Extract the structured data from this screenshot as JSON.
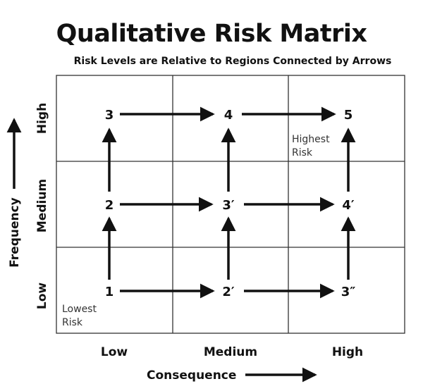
{
  "title": "Qualitative Risk Matrix",
  "subtitle": "Risk Levels are Relative to Regions Connected by Arrows",
  "x_axis": {
    "label": "Consequence",
    "categories": [
      "Low",
      "Medium",
      "High"
    ]
  },
  "y_axis": {
    "label": "Frequency",
    "categories": [
      "Low",
      "Medium",
      "High"
    ]
  },
  "nodes": {
    "low_low": "1",
    "low_medium": "2′",
    "low_high": "3″",
    "medium_low": "2",
    "medium_medium": "3′",
    "medium_high": "4′",
    "high_low": "3",
    "high_medium": "4",
    "high_high": "5"
  },
  "annotations": {
    "lowest_risk": [
      "Lowest",
      "Risk"
    ],
    "highest_risk": [
      "Highest",
      "Risk"
    ]
  }
}
